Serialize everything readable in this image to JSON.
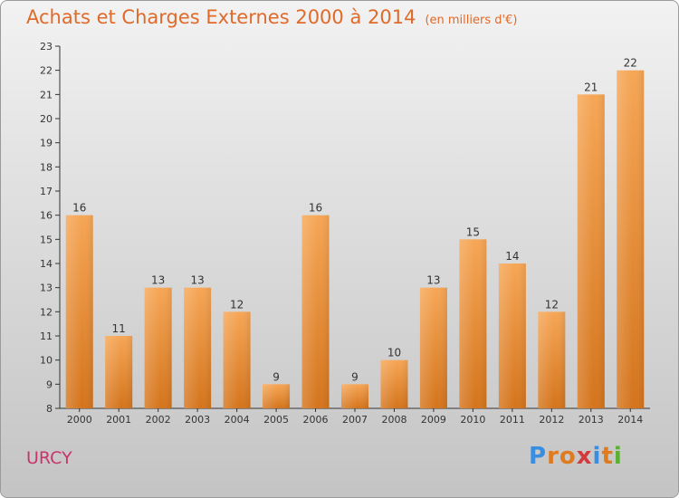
{
  "title": "Achats et Charges Externes 2000 à 2014",
  "unit": "(en milliers d'€)",
  "commune": "URCY",
  "logo": {
    "letters": [
      "P",
      "r",
      "o",
      "x",
      "i",
      "t",
      "i"
    ],
    "colors": [
      "#3a8ee0",
      "#e07a1e",
      "#e07a1e",
      "#d23b3b",
      "#3a8ee0",
      "#e07a1e",
      "#5ab030"
    ]
  },
  "colors": {
    "bar_top": "#f6a655",
    "bar_bottom": "#d4741c",
    "title": "#e06a2a",
    "commune": "#c8356b"
  },
  "chart_data": {
    "type": "bar",
    "categories": [
      "2000",
      "2001",
      "2002",
      "2003",
      "2004",
      "2005",
      "2006",
      "2007",
      "2008",
      "2009",
      "2010",
      "2011",
      "2012",
      "2013",
      "2014"
    ],
    "values": [
      16,
      11,
      13,
      13,
      12,
      9,
      16,
      9,
      10,
      13,
      15,
      14,
      12,
      21,
      22
    ],
    "ylim": [
      8,
      23
    ],
    "yticks": [
      8,
      9,
      10,
      11,
      12,
      13,
      14,
      15,
      16,
      17,
      18,
      19,
      20,
      21,
      22,
      23
    ],
    "grid": false,
    "legend": "none"
  }
}
